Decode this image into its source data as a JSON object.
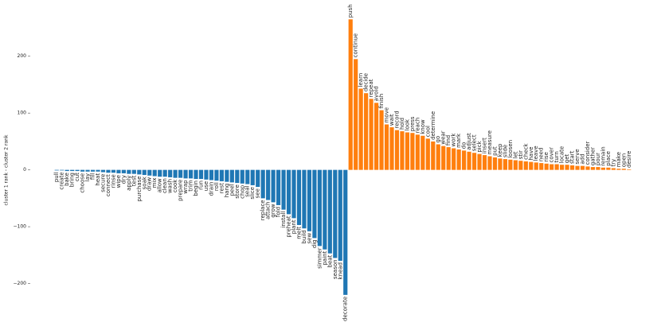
{
  "chart_data": {
    "type": "bar",
    "y_label": "cluster 1 rank - cluster 2 rank",
    "categories": [
      "pull",
      "create",
      "bake",
      "bring",
      "cut",
      "choose",
      "lay",
      "fill",
      "heat",
      "secure",
      "connect",
      "rinse",
      "wipe",
      "dry",
      "apply",
      "test",
      "purchase",
      "soak",
      "draw",
      "mix",
      "allow",
      "clean",
      "wash",
      "cook",
      "prepare",
      "wrap",
      "trim",
      "begin",
      "run",
      "use",
      "drain",
      "roll",
      "rest",
      "hang",
      "peel",
      "store",
      "chop",
      "seal",
      "slice",
      "see",
      "replace",
      "attach",
      "grow",
      "fold",
      "install",
      "preheat",
      "plant",
      "melt",
      "build",
      "sew",
      "dig",
      "simmer",
      "paint",
      "beat",
      "season",
      "knead",
      "decorate",
      "push",
      "continue",
      "learn",
      "decide",
      "repeat",
      "avoid",
      "finish",
      "move",
      "wait",
      "record",
      "hold",
      "look",
      "press",
      "reach",
      "know",
      "cool",
      "determine",
      "go",
      "wear",
      "find",
      "work",
      "mark",
      "do",
      "adjust",
      "select",
      "pick",
      "insert",
      "measure",
      "put",
      "keep",
      "slide",
      "loosen",
      "let",
      "stir",
      "check",
      "have",
      "leave",
      "need",
      "rise",
      "cover",
      "turn",
      "locate",
      "get",
      "start",
      "serve",
      "add",
      "consider",
      "gather",
      "pour",
      "remain",
      "place",
      "try",
      "make",
      "open",
      "desire"
    ],
    "values": [
      -1,
      -1,
      -2,
      -2,
      -2,
      -3,
      -3,
      -3,
      -3,
      -4,
      -5,
      -5,
      -6,
      -6,
      -7,
      -7,
      -8,
      -9,
      -10,
      -11,
      -12,
      -12,
      -13,
      -14,
      -14,
      -15,
      -15,
      -16,
      -16,
      -17,
      -18,
      -19,
      -20,
      -21,
      -22,
      -23,
      -24,
      -25,
      -27,
      -30,
      -50,
      -53,
      -57,
      -62,
      -70,
      -78,
      -85,
      -97,
      -103,
      -108,
      -120,
      -134,
      -140,
      -147,
      -155,
      -160,
      -220,
      265,
      195,
      143,
      135,
      125,
      118,
      105,
      80,
      75,
      70,
      68,
      66,
      65,
      62,
      60,
      55,
      50,
      45,
      42,
      40,
      38,
      36,
      34,
      32,
      30,
      28,
      26,
      24,
      22,
      20,
      19,
      18,
      17,
      16,
      15,
      14,
      13,
      12,
      11,
      10,
      10,
      9,
      9,
      8,
      7,
      7,
      6,
      5,
      5,
      4,
      4,
      3,
      2,
      2,
      1
    ],
    "colors": {
      "negative": "#1f77b4",
      "positive": "#ff7f0e"
    },
    "ylim": [
      -265,
      285
    ],
    "yticks": [
      {
        "value": -200,
        "label": "−200"
      },
      {
        "value": -100,
        "label": "−100"
      },
      0,
      100,
      200
    ],
    "grid": false
  }
}
